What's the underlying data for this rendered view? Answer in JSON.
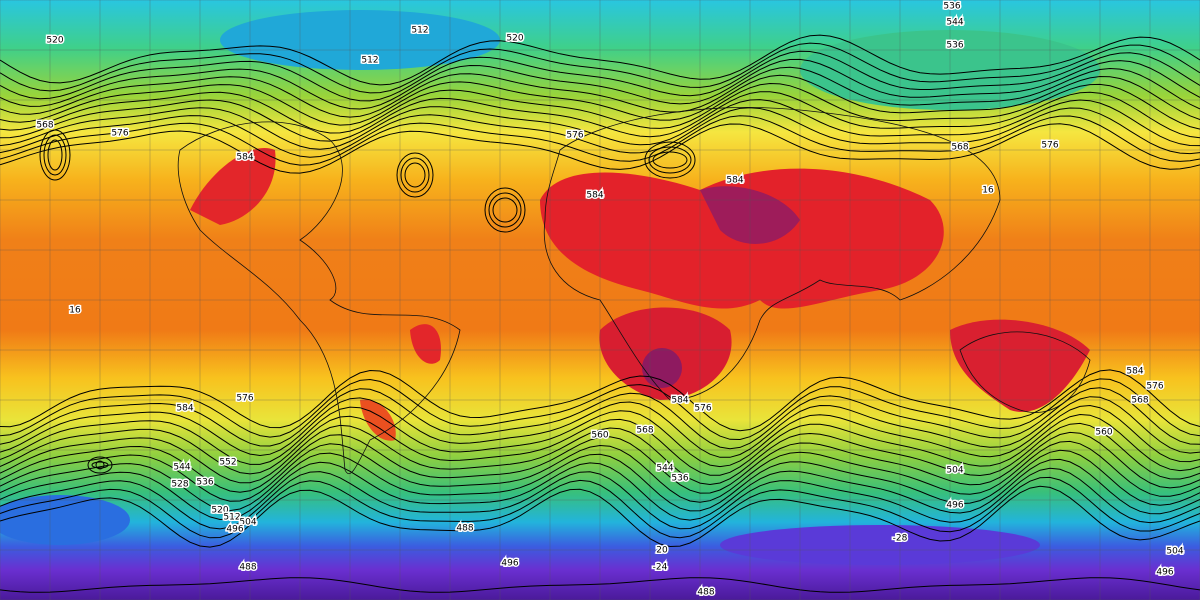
{
  "contour_labels": [
    520,
    512,
    520,
    536,
    544,
    536,
    512,
    576,
    568,
    576,
    568,
    576,
    584,
    584,
    584,
    584,
    576,
    584,
    576,
    568,
    560,
    552,
    544,
    536,
    528,
    544,
    536,
    520,
    512,
    504,
    496,
    488,
    496,
    488,
    504,
    496,
    504,
    496,
    488,
    584,
    576,
    568,
    560,
    16,
    16,
    20,
    -24,
    -28
  ]
}
